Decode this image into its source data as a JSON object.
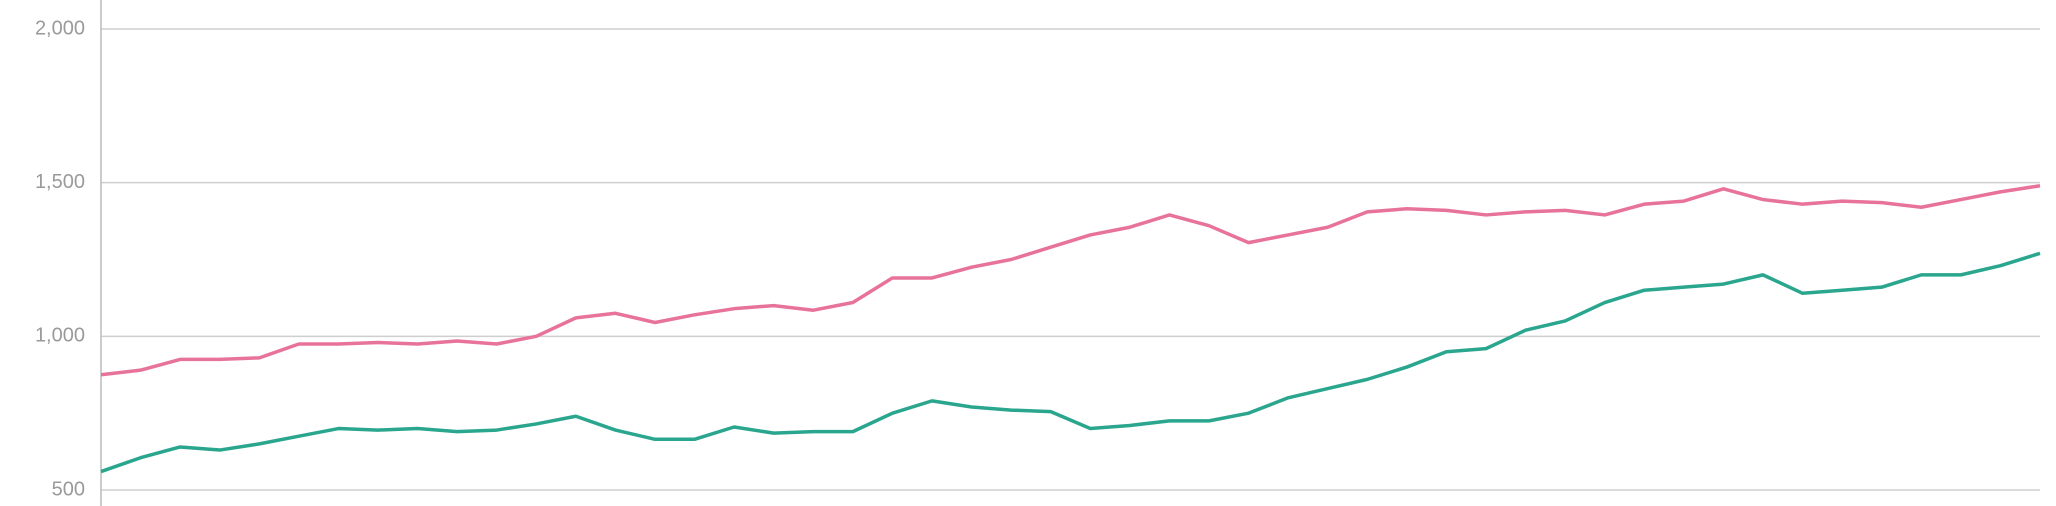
{
  "chart_data": {
    "type": "line",
    "ylim": [
      500,
      2000
    ],
    "yticks": [
      500,
      {
        "value": 1000,
        "label": "1,000"
      },
      {
        "value": 1500,
        "label": "1,500"
      },
      {
        "value": 2000,
        "label": "2,000"
      }
    ],
    "grid": true,
    "series": [
      {
        "color": "#e8739a",
        "values": [
          875,
          890,
          925,
          925,
          930,
          975,
          975,
          980,
          975,
          985,
          975,
          1000,
          1060,
          1075,
          1045,
          1070,
          1090,
          1100,
          1085,
          1110,
          1190,
          1190,
          1225,
          1250,
          1290,
          1330,
          1355,
          1395,
          1360,
          1305,
          1330,
          1355,
          1405,
          1415,
          1410,
          1395,
          1405,
          1410,
          1395,
          1430,
          1440,
          1480,
          1445,
          1430,
          1440,
          1435,
          1420,
          1445,
          1470,
          1490
        ]
      },
      {
        "color": "#2aa68f",
        "values": [
          560,
          605,
          640,
          630,
          650,
          675,
          700,
          695,
          700,
          690,
          695,
          715,
          740,
          695,
          665,
          665,
          705,
          685,
          690,
          690,
          750,
          790,
          770,
          760,
          755,
          700,
          710,
          725,
          725,
          750,
          800,
          830,
          860,
          900,
          950,
          960,
          1020,
          1050,
          1110,
          1150,
          1160,
          1170,
          1200,
          1140,
          1150,
          1160,
          1200,
          1200,
          1230,
          1270
        ]
      }
    ]
  }
}
